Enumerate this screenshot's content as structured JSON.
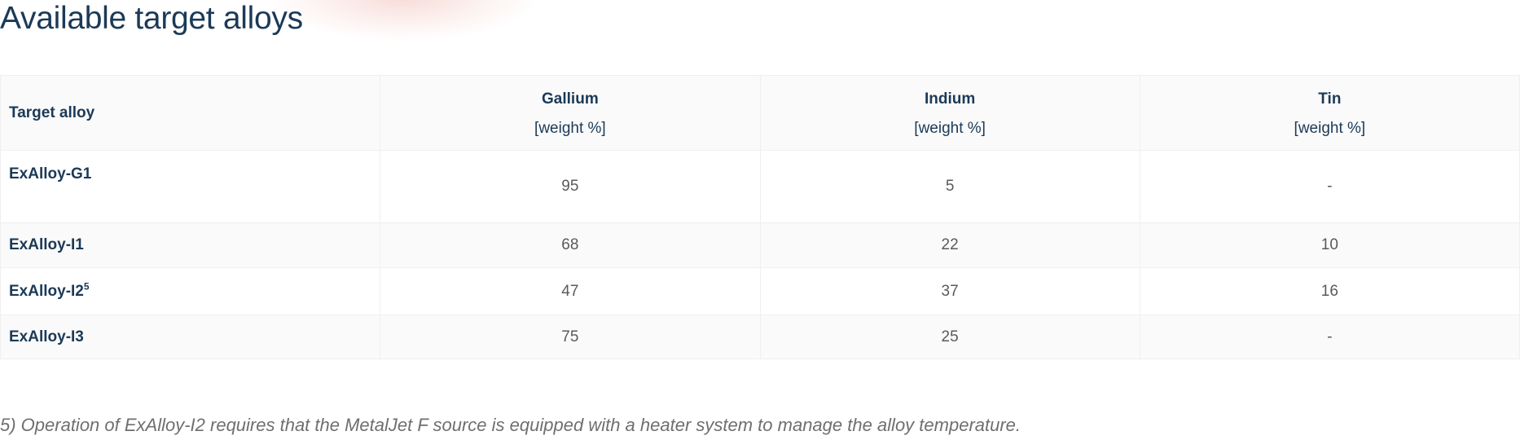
{
  "page": {
    "title": "Available target alloys"
  },
  "table": {
    "row_header_label": "Target alloy",
    "columns": [
      {
        "name": "Gallium",
        "unit": "[weight %]"
      },
      {
        "name": "Indium",
        "unit": "[weight %]"
      },
      {
        "name": "Tin",
        "unit": "[weight %]"
      }
    ],
    "rows": [
      {
        "alloy": "ExAlloy-G1",
        "footnote_mark": "",
        "values": [
          "95",
          "5",
          "-"
        ]
      },
      {
        "alloy": "ExAlloy-I1",
        "footnote_mark": "",
        "values": [
          "68",
          "22",
          "10"
        ]
      },
      {
        "alloy": "ExAlloy-I2",
        "footnote_mark": "5",
        "values": [
          "47",
          "37",
          "16"
        ]
      },
      {
        "alloy": "ExAlloy-I3",
        "footnote_mark": "",
        "values": [
          "75",
          "25",
          "-"
        ]
      }
    ]
  },
  "footnote": {
    "text": "5) Operation of ExAlloy-I2 requires that the MetalJet F source is equipped with a heater system to manage the alloy temperature."
  },
  "colors": {
    "heading": "#1b3a57",
    "cell_text": "#5a5a5a",
    "footnote_text": "#6f6f6f",
    "striped_row": "#fafafa",
    "border": "#efefef"
  }
}
